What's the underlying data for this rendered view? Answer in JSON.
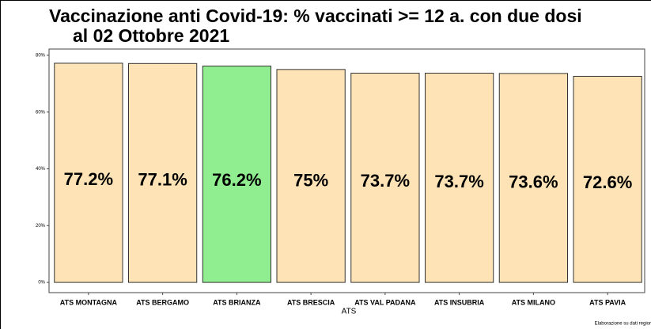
{
  "chart_data": {
    "type": "bar",
    "title": [
      "Vaccinazione anti Covid-19: % vaccinati >= 12 a. con due dosi",
      "al 02 Ottobre 2021"
    ],
    "x_label": "ATS",
    "note": "Elaborazione su dati regior",
    "categories": [
      "ATS MONTAGNA",
      "ATS BERGAMO",
      "ATS BRIANZA",
      "ATS BRESCIA",
      "ATS VAL PADANA",
      "ATS INSUBRIA",
      "ATS MILANO",
      "ATS PAVIA"
    ],
    "values": [
      77.2,
      77.1,
      76.2,
      75,
      73.7,
      73.7,
      73.6,
      72.6
    ],
    "value_labels": [
      "77.2%",
      "77.1%",
      "76.2%",
      "75%",
      "73.7%",
      "73.7%",
      "73.6%",
      "72.6%"
    ],
    "colors": [
      "#fde3b5",
      "#fde3b5",
      "#90ee90",
      "#fde3b5",
      "#fde3b5",
      "#fde3b5",
      "#fde3b5",
      "#fde3b5"
    ],
    "ylim": [
      -3.6,
      82.2
    ],
    "yticks": [
      {
        "value": 0,
        "label": "0%"
      },
      {
        "value": 20,
        "label": "20%"
      },
      {
        "value": 40,
        "label": "40%"
      },
      {
        "value": 60,
        "label": "60%"
      },
      {
        "value": 80,
        "label": "80%"
      }
    ]
  }
}
